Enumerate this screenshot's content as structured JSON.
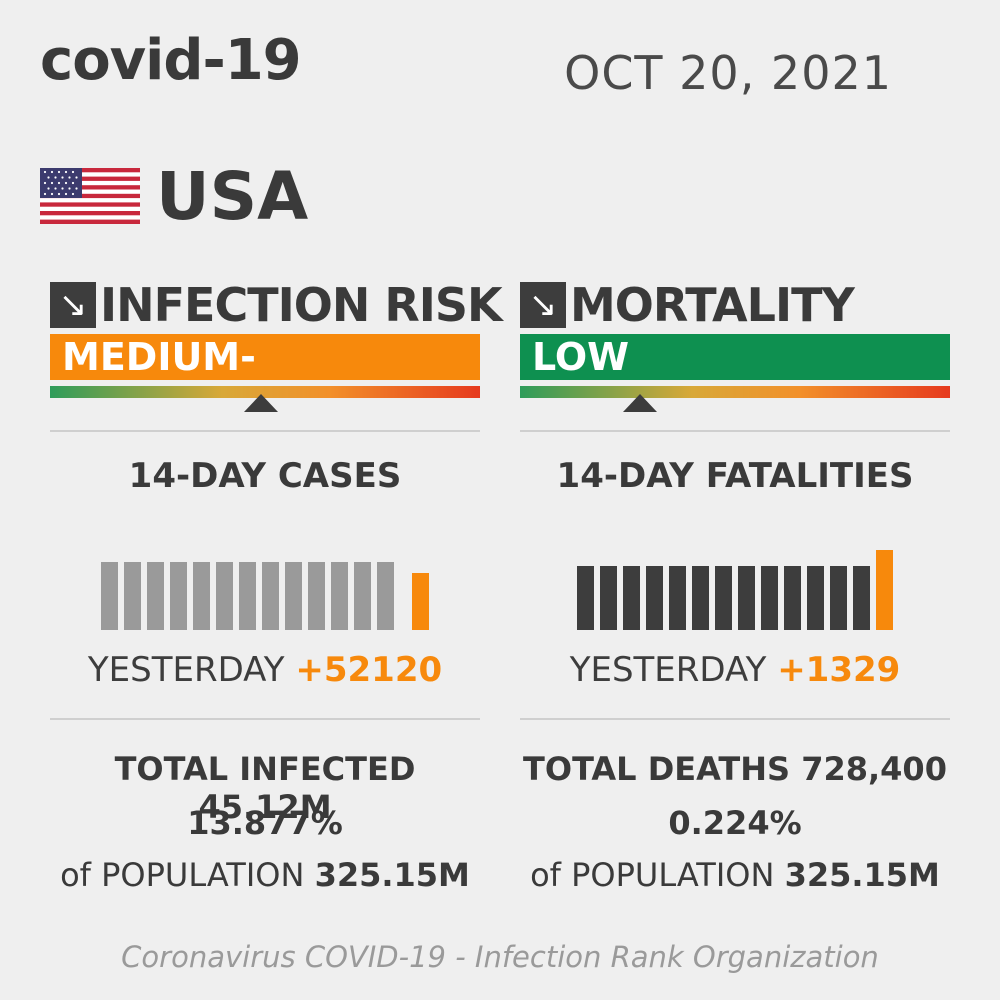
{
  "header": {
    "title": "covid-19",
    "date": "OCT 20, 2021",
    "country": "USA",
    "flag_icon": "usa-flag-icon"
  },
  "colors": {
    "orange": "#f7890c",
    "green": "#0e9050",
    "dark_bar": "#3d3d3d",
    "light_bar": "#9a9a9a"
  },
  "infection": {
    "heading": "INFECTION RISK",
    "trend_icon": "arrow-down-right-icon",
    "level": "MEDIUM-",
    "level_color": "#f7890c",
    "marker_position": 0.49,
    "section_title": "14-DAY CASES",
    "bar_heights": [
      0.62,
      0.62,
      0.62,
      0.62,
      0.62,
      0.62,
      0.62,
      0.62,
      0.62,
      0.62,
      0.62,
      0.62,
      0.62,
      0.52
    ],
    "yesterday_label": "YESTERDAY",
    "yesterday_value": "+52120",
    "total_label": "TOTAL INFECTED",
    "total_value": "45.12M",
    "percent": "13.877%",
    "population_label": "of POPULATION",
    "population_value": "325.15M"
  },
  "mortality": {
    "heading": "MORTALITY",
    "trend_icon": "arrow-down-right-icon",
    "level": "LOW",
    "level_color": "#0e9050",
    "marker_position": 0.28,
    "section_title": "14-DAY FATALITIES",
    "bar_heights": [
      0.58,
      0.58,
      0.58,
      0.58,
      0.58,
      0.58,
      0.58,
      0.58,
      0.58,
      0.58,
      0.58,
      0.58,
      0.58,
      0.73
    ],
    "yesterday_label": "YESTERDAY",
    "yesterday_value": "+1329",
    "total_label": "TOTAL DEATHS",
    "total_value": "728,400",
    "percent": "0.224%",
    "population_label": "of POPULATION",
    "population_value": "325.15M"
  },
  "footer": {
    "text": "Coronavirus COVID-19 - Infection Rank Organization"
  }
}
